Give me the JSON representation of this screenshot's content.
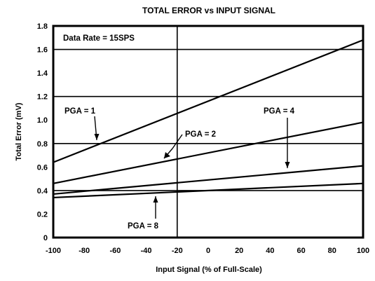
{
  "chart_data": {
    "type": "line",
    "title": "TOTAL ERROR vs INPUT SIGNAL",
    "xlabel": "Input Signal (% of Full-Scale)",
    "ylabel": "Total Error (mV)",
    "xlim": [
      -100,
      100
    ],
    "ylim": [
      0,
      1.8
    ],
    "x_ticks": [
      "-100",
      "-80",
      "-60",
      "-40",
      "-20",
      "0",
      "20",
      "40",
      "60",
      "80",
      "100"
    ],
    "y_ticks": [
      "0",
      "0.2",
      "0.4",
      "0.6",
      "0.8",
      "1.0",
      "1.2",
      "1.4",
      "1.6",
      "1.8"
    ],
    "grid": "major lines at x = -20 and y = 0.4, 0.8, 1.2, 1.6",
    "annotation": "Data Rate = 15SPS",
    "series": [
      {
        "name": "PGA = 1",
        "x": [
          -100,
          100
        ],
        "y": [
          0.64,
          1.68
        ]
      },
      {
        "name": "PGA = 2",
        "x": [
          -100,
          100
        ],
        "y": [
          0.46,
          0.98
        ]
      },
      {
        "name": "PGA = 4",
        "x": [
          -100,
          100
        ],
        "y": [
          0.37,
          0.61
        ]
      },
      {
        "name": "PGA = 8",
        "x": [
          -100,
          100
        ],
        "y": [
          0.34,
          0.46
        ]
      }
    ]
  }
}
